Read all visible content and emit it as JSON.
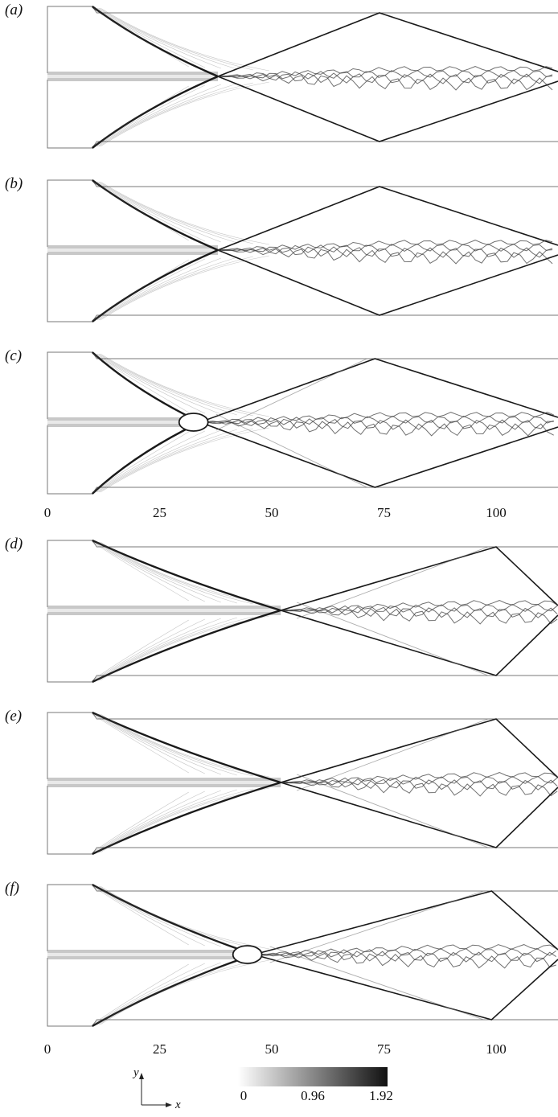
{
  "panels": [
    {
      "label": "(a)",
      "reflection": "mach",
      "triple_x": 38,
      "reflect_x": 74
    },
    {
      "label": "(b)",
      "reflection": "mach",
      "triple_x": 38,
      "reflect_x": 74
    },
    {
      "label": "(c)",
      "reflection": "bubble",
      "triple_x": 34,
      "reflect_x": 73
    },
    {
      "label": "(d)",
      "reflection": "mach",
      "triple_x": 52,
      "reflect_x": 100
    },
    {
      "label": "(e)",
      "reflection": "mach",
      "triple_x": 52,
      "reflect_x": 100
    },
    {
      "label": "(f)",
      "reflection": "bubble",
      "triple_x": 46,
      "reflect_x": 99
    }
  ],
  "x_axis_top": {
    "ticks": [
      "0",
      "25",
      "50",
      "75",
      "100"
    ],
    "values": [
      0,
      25,
      50,
      75,
      100
    ]
  },
  "x_axis_bottom": {
    "ticks": [
      "0",
      "25",
      "50",
      "75",
      "100"
    ],
    "values": [
      0,
      25,
      50,
      75,
      100
    ]
  },
  "axes_indicator": {
    "y": "y",
    "x": "x"
  },
  "colorbar": {
    "ticks": [
      "0",
      "0.96",
      "1.92"
    ],
    "min": 0,
    "max": 1.92,
    "colors": [
      "#ffffff",
      "#111111"
    ]
  },
  "colors": {
    "shock": "#1a1a1a",
    "jet": "#9a9a9a",
    "frame": "#777777"
  }
}
